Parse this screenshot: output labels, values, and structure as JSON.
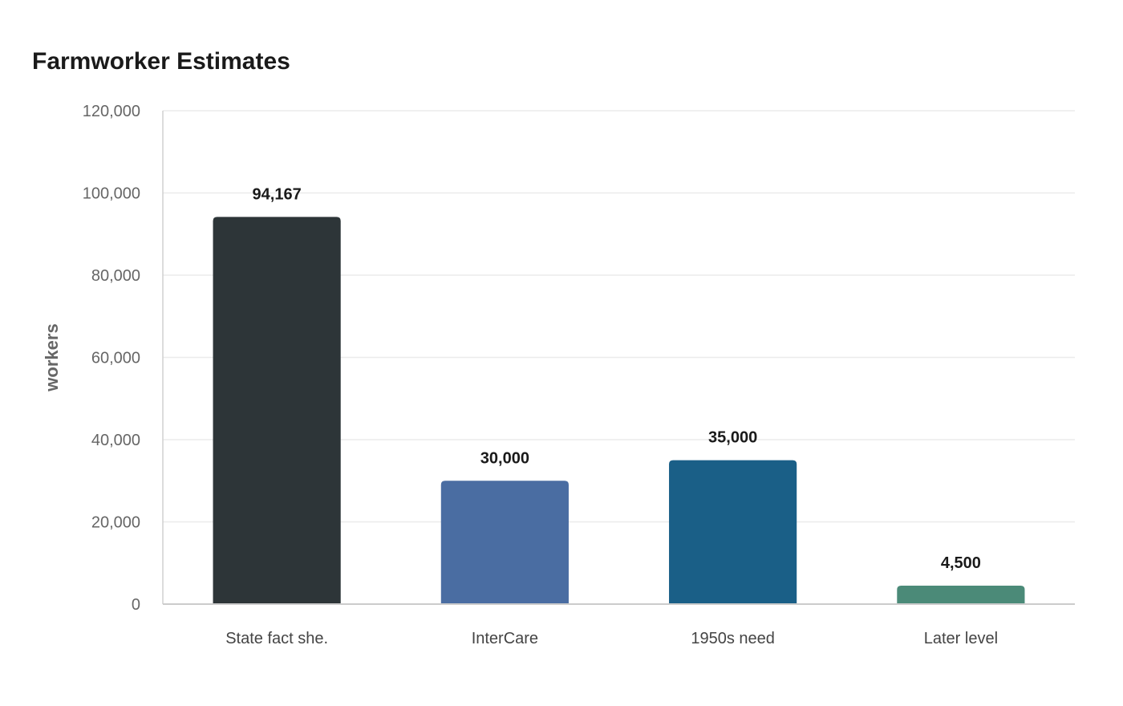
{
  "chart_data": {
    "type": "bar",
    "title": "Farmworker Estimates",
    "xlabel": "",
    "ylabel": "workers",
    "categories": [
      "State fact she.",
      "InterCare",
      "1950s need",
      "Later level"
    ],
    "values": [
      94167,
      30000,
      35000,
      4500
    ],
    "value_labels": [
      "94,167",
      "30,000",
      "35,000",
      "4,500"
    ],
    "colors": [
      "#2d3538",
      "#4a6da2",
      "#1a5f87",
      "#4b8a78"
    ],
    "ylim": [
      0,
      120000
    ],
    "yticks": [
      0,
      20000,
      40000,
      60000,
      80000,
      100000,
      120000
    ],
    "ytick_labels": [
      "0",
      "20,000",
      "40,000",
      "60,000",
      "80,000",
      "100,000",
      "120,000"
    ],
    "grid": true,
    "legend": "none"
  }
}
